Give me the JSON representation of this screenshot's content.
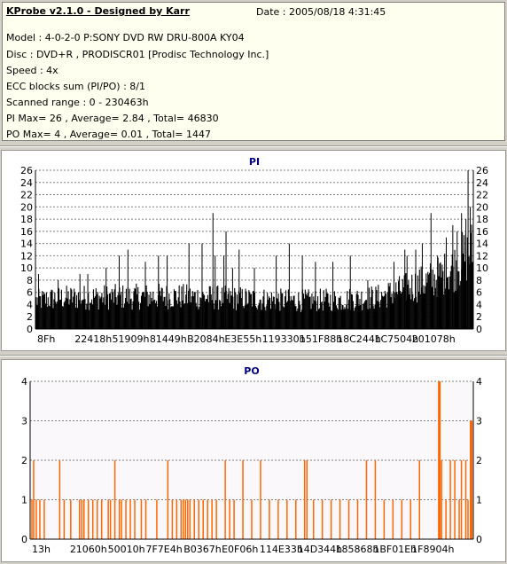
{
  "header": {
    "app_title": "KProbe v2.1.0 - Designed by Karr",
    "date": "Date : 2005/08/18 4:31:45",
    "lines": [
      "Model : 4-0-2-0 P:SONY    DVD RW DRU-800A  KY04",
      "Disc : DVD+R , PRODISCR01 [Prodisc Technology Inc.]",
      "Speed : 4x",
      "ECC blocks sum (PI/PO) : 8/1",
      "Scanned range : 0 - 230463h",
      "PI Max= 26 , Average= 2.84 , Total= 46830",
      "PO Max= 4 , Average= 0.01 , Total= 1447"
    ]
  },
  "colors": {
    "pi_bars": "#000000",
    "po_bars": "#ff6600",
    "pi_title": "#000080",
    "po_title": "#000080",
    "po_plot_bg": "#fbf8fb",
    "grid": "#7f7f7f"
  },
  "chart_data": [
    {
      "type": "bar",
      "title": "PI",
      "ylim": [
        0,
        26
      ],
      "yticks": [
        0,
        2,
        4,
        6,
        8,
        10,
        12,
        14,
        16,
        18,
        20,
        22,
        24,
        26
      ],
      "xlim": [
        0,
        230463
      ],
      "xtick_labels": [
        "8Fh",
        "22418h",
        "51909h",
        "81449h",
        "B2084h",
        "E3E55h",
        "119330h",
        "151F88h",
        "18C244h",
        "1C7504h",
        "201078h"
      ],
      "grid": true,
      "max": 26,
      "average": 2.84,
      "total": 46830,
      "profile": [
        [
          0,
          5
        ],
        [
          0.05,
          5.5
        ],
        [
          0.1,
          5.6
        ],
        [
          0.2,
          5.7
        ],
        [
          0.3,
          5.8
        ],
        [
          0.4,
          5.6
        ],
        [
          0.5,
          5.3
        ],
        [
          0.6,
          5.0
        ],
        [
          0.7,
          5.2
        ],
        [
          0.78,
          5.6
        ],
        [
          0.82,
          6.5
        ],
        [
          0.86,
          7.5
        ],
        [
          0.9,
          8.5
        ],
        [
          0.93,
          9.5
        ],
        [
          0.96,
          11
        ],
        [
          0.985,
          13
        ],
        [
          1,
          14
        ]
      ],
      "spikes": [
        [
          0.005,
          9
        ],
        [
          0.05,
          8
        ],
        [
          0.1,
          9
        ],
        [
          0.118,
          9
        ],
        [
          0.16,
          10
        ],
        [
          0.19,
          12
        ],
        [
          0.21,
          13
        ],
        [
          0.25,
          11
        ],
        [
          0.28,
          12
        ],
        [
          0.3,
          12
        ],
        [
          0.35,
          14
        ],
        [
          0.38,
          14
        ],
        [
          0.405,
          19
        ],
        [
          0.41,
          12
        ],
        [
          0.43,
          12
        ],
        [
          0.435,
          16
        ],
        [
          0.45,
          10
        ],
        [
          0.465,
          13
        ],
        [
          0.5,
          10
        ],
        [
          0.55,
          12
        ],
        [
          0.58,
          14
        ],
        [
          0.61,
          12
        ],
        [
          0.64,
          11
        ],
        [
          0.68,
          11
        ],
        [
          0.72,
          12
        ],
        [
          0.76,
          8
        ],
        [
          0.82,
          11
        ],
        [
          0.845,
          13
        ],
        [
          0.85,
          12
        ],
        [
          0.87,
          13
        ],
        [
          0.885,
          14
        ],
        [
          0.905,
          19
        ],
        [
          0.92,
          12
        ],
        [
          0.94,
          15
        ],
        [
          0.955,
          17
        ],
        [
          0.965,
          16
        ],
        [
          0.975,
          19
        ],
        [
          0.985,
          18
        ],
        [
          0.99,
          26
        ],
        [
          0.995,
          20
        ]
      ]
    },
    {
      "type": "bar",
      "title": "PO",
      "ylim": [
        0,
        4
      ],
      "yticks": [
        0,
        1,
        2,
        3,
        4
      ],
      "xlim": [
        0,
        230463
      ],
      "xtick_labels": [
        "13h",
        "21060h",
        "50010h",
        "7F7E4h",
        "B0367h",
        "E0F06h",
        "114E33h",
        "14D344h",
        "185868h",
        "1BF01Eh",
        "1F8904h"
      ],
      "grid": true,
      "max": 4,
      "average": 0.01,
      "total": 1447,
      "points": [
        [
          0.002,
          1
        ],
        [
          0.006,
          2
        ],
        [
          0.012,
          1
        ],
        [
          0.02,
          1
        ],
        [
          0.03,
          1
        ],
        [
          0.065,
          2
        ],
        [
          0.075,
          1
        ],
        [
          0.09,
          1
        ],
        [
          0.11,
          1
        ],
        [
          0.115,
          1
        ],
        [
          0.12,
          1
        ],
        [
          0.13,
          1
        ],
        [
          0.14,
          1
        ],
        [
          0.15,
          1
        ],
        [
          0.16,
          1
        ],
        [
          0.175,
          1
        ],
        [
          0.18,
          1
        ],
        [
          0.19,
          2
        ],
        [
          0.2,
          1
        ],
        [
          0.205,
          1
        ],
        [
          0.215,
          1
        ],
        [
          0.225,
          1
        ],
        [
          0.235,
          1
        ],
        [
          0.25,
          1
        ],
        [
          0.26,
          1
        ],
        [
          0.285,
          1
        ],
        [
          0.31,
          2
        ],
        [
          0.32,
          1
        ],
        [
          0.33,
          1
        ],
        [
          0.34,
          1
        ],
        [
          0.345,
          1
        ],
        [
          0.35,
          1
        ],
        [
          0.355,
          1
        ],
        [
          0.36,
          1
        ],
        [
          0.37,
          1
        ],
        [
          0.38,
          1
        ],
        [
          0.39,
          1
        ],
        [
          0.4,
          1
        ],
        [
          0.41,
          1
        ],
        [
          0.42,
          1
        ],
        [
          0.44,
          2
        ],
        [
          0.45,
          1
        ],
        [
          0.46,
          1
        ],
        [
          0.48,
          2
        ],
        [
          0.5,
          1
        ],
        [
          0.52,
          2
        ],
        [
          0.54,
          1
        ],
        [
          0.56,
          1
        ],
        [
          0.58,
          1
        ],
        [
          0.6,
          1
        ],
        [
          0.62,
          2
        ],
        [
          0.625,
          2
        ],
        [
          0.64,
          1
        ],
        [
          0.66,
          1
        ],
        [
          0.68,
          1
        ],
        [
          0.7,
          1
        ],
        [
          0.72,
          1
        ],
        [
          0.74,
          1
        ],
        [
          0.76,
          2
        ],
        [
          0.78,
          2
        ],
        [
          0.8,
          1
        ],
        [
          0.82,
          1
        ],
        [
          0.84,
          1
        ],
        [
          0.86,
          1
        ],
        [
          0.88,
          2
        ],
        [
          0.925,
          4
        ],
        [
          0.93,
          2
        ],
        [
          0.94,
          1
        ],
        [
          0.95,
          2
        ],
        [
          0.96,
          2
        ],
        [
          0.97,
          1
        ],
        [
          0.975,
          2
        ],
        [
          0.985,
          2
        ],
        [
          0.99,
          1
        ],
        [
          0.997,
          3
        ]
      ]
    }
  ]
}
